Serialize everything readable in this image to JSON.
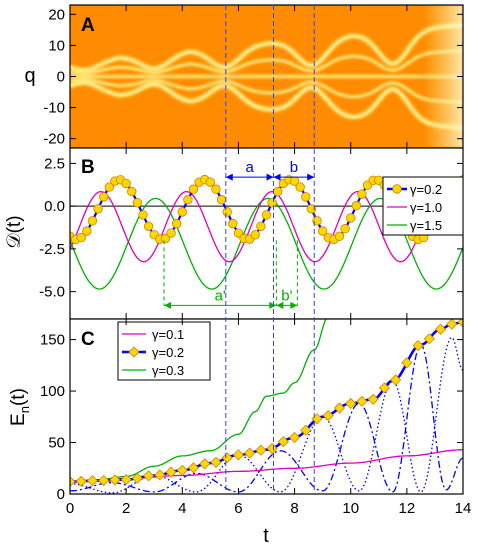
{
  "figure": {
    "x_axis_title": "t",
    "x_ticks": [
      "0",
      "2",
      "4",
      "6",
      "8",
      "10",
      "12",
      "14"
    ],
    "guide_times": [
      5.55,
      7.25,
      8.7
    ]
  },
  "chart_data": [
    {
      "panel_letter": "A",
      "type": "heatmap",
      "ylabel": "q",
      "y_ticks": [
        "20",
        "10",
        "0",
        "-10",
        "-20"
      ],
      "xlim": [
        0,
        14
      ],
      "ylim": [
        -23,
        23
      ],
      "colors": {
        "background": "#FF8C00",
        "high": "#FFFFF0"
      },
      "breathing": {
        "base_width": 3.5,
        "slope": 0.85,
        "amplitude": 2.6,
        "period": 3.0,
        "neck_times": [
          0.5,
          3.0,
          5.5,
          8.6,
          11.5
        ]
      },
      "fringe_count": 5
    },
    {
      "panel_letter": "B",
      "type": "line",
      "ylabel": "𝒟(t)",
      "y_ticks": [
        "2.5",
        "0.0",
        "-2.5",
        "-5.0"
      ],
      "xlim": [
        0,
        14
      ],
      "ylim": [
        -6.6,
        3.4
      ],
      "reference_line": 0,
      "legend": {
        "position": "top-right",
        "entries": [
          "γ=0.2",
          "γ=1.0",
          "γ=1.5"
        ]
      },
      "series": [
        {
          "name": "γ=0.2",
          "color": "#0000FF",
          "marker": "circle",
          "marker_fill": "#FFD700",
          "model": {
            "offset": -0.2,
            "amplitude": 1.75,
            "period": 3.05,
            "peak_time": 1.75
          }
        },
        {
          "name": "γ=1.0",
          "color": "#E000C0",
          "model": {
            "offset": -1.2,
            "amplitude": 2.05,
            "period": 3.05,
            "peak_time": 1.1
          }
        },
        {
          "name": "γ=1.5",
          "color": "#00B000",
          "model": {
            "offset": -2.2,
            "amplitude": 2.65,
            "period": 4.0,
            "peak_time": 3.05
          }
        }
      ],
      "annotations": [
        {
          "label": "a",
          "color": "#0000FF",
          "t_start": 5.55,
          "t_end": 7.25,
          "y": 1.7
        },
        {
          "label": "b",
          "color": "#0000FF",
          "t_start": 7.25,
          "t_end": 8.7,
          "y": 1.7
        },
        {
          "label": "a'",
          "color": "#00B000",
          "t_start": 3.35,
          "t_end": 7.35,
          "y": -5.8
        },
        {
          "label": "b'",
          "color": "#00B000",
          "t_start": 7.35,
          "t_end": 8.1,
          "y": -5.8
        }
      ]
    },
    {
      "panel_letter": "C",
      "type": "line",
      "ylabel": "E",
      "ylabel_sub": "n",
      "ylabel_suffix": "(t)",
      "y_ticks": [
        "150",
        "100",
        "50",
        "0"
      ],
      "xlim": [
        0,
        14
      ],
      "ylim": [
        0,
        170
      ],
      "legend": {
        "position": "top-left",
        "entries": [
          "γ=0.1",
          "γ=0.2",
          "γ=0.3"
        ]
      },
      "series": [
        {
          "name": "γ=0.1",
          "color": "#E000C0",
          "style": "solid",
          "points": [
            [
              0,
              12
            ],
            [
              2,
              15
            ],
            [
              4,
              18
            ],
            [
              6,
              22
            ],
            [
              8,
              25
            ],
            [
              10,
              30
            ],
            [
              12,
              37
            ],
            [
              14,
              43
            ]
          ]
        },
        {
          "name": "γ=0.2",
          "color": "#0000FF",
          "style": "thick",
          "marker": "diamond",
          "marker_fill": "#FFD700",
          "points": [
            [
              0,
              12
            ],
            [
              1,
              13
            ],
            [
              2,
              14
            ],
            [
              3,
              18
            ],
            [
              4,
              23
            ],
            [
              5,
              30
            ],
            [
              6,
              38
            ],
            [
              7,
              43
            ],
            [
              8,
              55
            ],
            [
              9,
              75
            ],
            [
              10,
              88
            ],
            [
              10.8,
              92
            ],
            [
              11.5,
              110
            ],
            [
              12.5,
              145
            ],
            [
              13.2,
              160
            ],
            [
              13.6,
              165
            ],
            [
              14,
              167
            ]
          ]
        },
        {
          "name": "γ=0.3",
          "color": "#00B000",
          "style": "solid",
          "points": [
            [
              0,
              12
            ],
            [
              1,
              14
            ],
            [
              2,
              17
            ],
            [
              3,
              27
            ],
            [
              4,
              37
            ],
            [
              5,
              42
            ],
            [
              6,
              58
            ],
            [
              6.6,
              80
            ],
            [
              7,
              95
            ],
            [
              7.6,
              98
            ],
            [
              8,
              108
            ],
            [
              8.7,
              140
            ],
            [
              9.2,
              172
            ]
          ]
        },
        {
          "name": "",
          "color": "#0000FF",
          "style": "dotted",
          "points": [
            [
              0,
              10
            ],
            [
              1.5,
              1
            ],
            [
              3,
              18
            ],
            [
              4.5,
              2
            ],
            [
              6,
              38
            ],
            [
              7.5,
              2
            ],
            [
              9,
              75
            ],
            [
              10.3,
              3
            ],
            [
              11.5,
              110
            ],
            [
              12.5,
              2
            ],
            [
              13.6,
              152
            ],
            [
              14,
              120
            ]
          ]
        },
        {
          "name": "",
          "color": "#0000FF",
          "style": "dashdot",
          "points": [
            [
              0,
              3
            ],
            [
              1.5,
              11
            ],
            [
              3,
              2
            ],
            [
              4.5,
              20
            ],
            [
              6,
              2
            ],
            [
              7.5,
              42
            ],
            [
              9,
              3
            ],
            [
              10.3,
              88
            ],
            [
              11.5,
              2
            ],
            [
              12.5,
              145
            ],
            [
              13.4,
              4
            ],
            [
              14,
              35
            ]
          ]
        }
      ]
    }
  ]
}
